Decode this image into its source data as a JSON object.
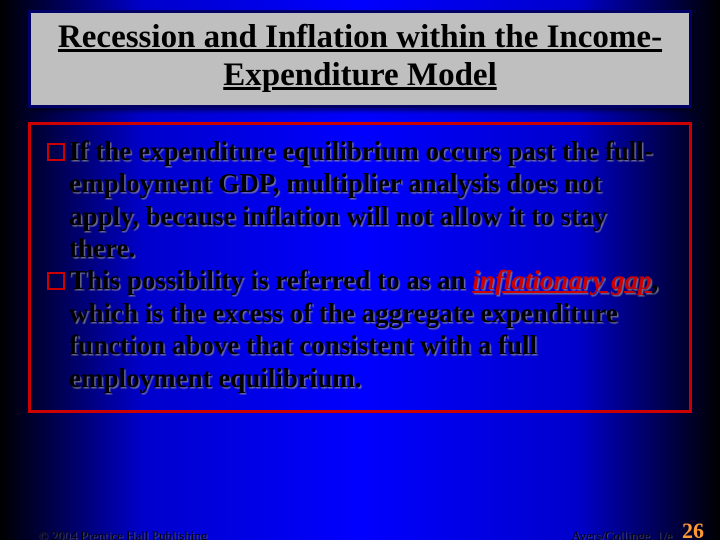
{
  "title": "Recession and Inflation within the Income-Expenditure Model",
  "bullets": [
    {
      "pre": "If the expenditure equilibrium occurs past the full-employment GDP, multiplier analysis does not apply, because inflation will not allow it to stay there.",
      "keyword": "",
      "post": ""
    },
    {
      "pre": "This possibility is referred to as an ",
      "keyword": "inflationary gap",
      "post": ", which is the excess of the aggregate expenditure function above that consistent with a full employment equilibrium."
    }
  ],
  "footer": {
    "left": "© 2004 Prentice Hall Publishing",
    "right": "Ayers/Collinge, 1/e",
    "page": "26"
  },
  "colors": {
    "bullet_border": "#cc0000",
    "content_border": "#cc0000",
    "title_bg": "#bfbfbf",
    "title_border": "#000066",
    "keyword_color": "#cc0000",
    "page_color": "#ff9933"
  }
}
